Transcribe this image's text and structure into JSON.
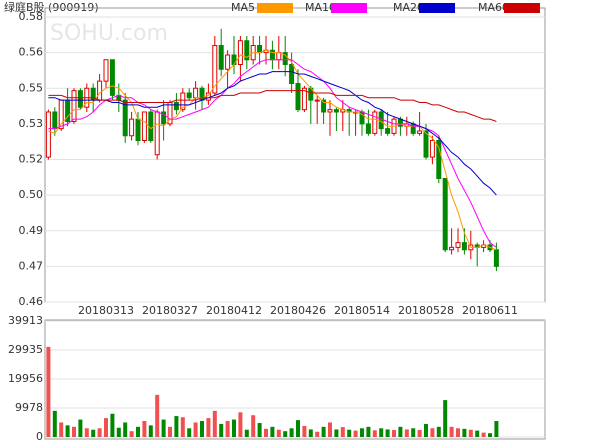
{
  "chart_data": {
    "type": "candlestick",
    "title": "绿庭B股 (900919)",
    "watermark": "SOHU.com",
    "categories": [
      null,
      null,
      null,
      null,
      null,
      null,
      null,
      null,
      null,
      "20180313",
      null,
      null,
      null,
      null,
      null,
      null,
      null,
      null,
      null,
      "20180327",
      null,
      null,
      null,
      null,
      null,
      null,
      null,
      null,
      null,
      "20180412",
      null,
      null,
      null,
      null,
      null,
      null,
      null,
      null,
      null,
      "20180426",
      null,
      null,
      null,
      null,
      null,
      null,
      null,
      null,
      null,
      "20180514",
      null,
      null,
      null,
      null,
      null,
      null,
      null,
      null,
      null,
      "20180528",
      null,
      null,
      null,
      null,
      null,
      null,
      null,
      null,
      null,
      "20180611",
      null
    ],
    "ohlc": [
      [
        0.521,
        0.541,
        0.52,
        0.54
      ],
      [
        0.54,
        0.542,
        0.53,
        0.533
      ],
      [
        0.533,
        0.545,
        0.532,
        0.545
      ],
      [
        0.545,
        0.55,
        0.534,
        0.536
      ],
      [
        0.536,
        0.55,
        0.535,
        0.549
      ],
      [
        0.549,
        0.55,
        0.541,
        0.542
      ],
      [
        0.542,
        0.552,
        0.54,
        0.55
      ],
      [
        0.55,
        0.552,
        0.54,
        0.545
      ],
      [
        0.545,
        0.556,
        0.544,
        0.553
      ],
      [
        0.553,
        0.562,
        0.55,
        0.562
      ],
      [
        0.562,
        0.562,
        0.545,
        0.547
      ],
      [
        0.547,
        0.552,
        0.54,
        0.545
      ],
      [
        0.545,
        0.548,
        0.527,
        0.53
      ],
      [
        0.53,
        0.54,
        0.528,
        0.537
      ],
      [
        0.537,
        0.54,
        0.526,
        0.528
      ],
      [
        0.528,
        0.54,
        0.527,
        0.54
      ],
      [
        0.54,
        0.541,
        0.527,
        0.528
      ],
      [
        0.522,
        0.541,
        0.52,
        0.54
      ],
      [
        0.54,
        0.545,
        0.528,
        0.535
      ],
      [
        0.535,
        0.545,
        0.534,
        0.544
      ],
      [
        0.544,
        0.548,
        0.539,
        0.541
      ],
      [
        0.541,
        0.55,
        0.54,
        0.548
      ],
      [
        0.548,
        0.55,
        0.545,
        0.546
      ],
      [
        0.546,
        0.553,
        0.541,
        0.55
      ],
      [
        0.55,
        0.551,
        0.541,
        0.545
      ],
      [
        0.545,
        0.552,
        0.543,
        0.548
      ],
      [
        0.548,
        0.572,
        0.547,
        0.568
      ],
      [
        0.568,
        0.575,
        0.555,
        0.558
      ],
      [
        0.558,
        0.566,
        0.55,
        0.564
      ],
      [
        0.564,
        0.572,
        0.556,
        0.56
      ],
      [
        0.56,
        0.572,
        0.553,
        0.57
      ],
      [
        0.57,
        0.572,
        0.558,
        0.562
      ],
      [
        0.562,
        0.572,
        0.56,
        0.568
      ],
      [
        0.568,
        0.572,
        0.56,
        0.565
      ],
      [
        0.565,
        0.572,
        0.56,
        0.566
      ],
      [
        0.566,
        0.57,
        0.558,
        0.562
      ],
      [
        0.562,
        0.572,
        0.558,
        0.565
      ],
      [
        0.565,
        0.572,
        0.555,
        0.56
      ],
      [
        0.56,
        0.565,
        0.548,
        0.552
      ],
      [
        0.552,
        0.558,
        0.54,
        0.541
      ],
      [
        0.541,
        0.551,
        0.54,
        0.55
      ],
      [
        0.55,
        0.551,
        0.535,
        0.545
      ],
      [
        0.545,
        0.547,
        0.535,
        0.545
      ],
      [
        0.545,
        0.546,
        0.535,
        0.54
      ],
      [
        0.54,
        0.545,
        0.53,
        0.541
      ],
      [
        0.541,
        0.542,
        0.532,
        0.54
      ],
      [
        0.54,
        0.545,
        0.532,
        0.541
      ],
      [
        0.541,
        0.542,
        0.53,
        0.54
      ],
      [
        0.54,
        0.541,
        0.53,
        0.54
      ],
      [
        0.54,
        0.541,
        0.53,
        0.535
      ],
      [
        0.535,
        0.541,
        0.53,
        0.531
      ],
      [
        0.531,
        0.541,
        0.53,
        0.54
      ],
      [
        0.54,
        0.541,
        0.53,
        0.533
      ],
      [
        0.533,
        0.54,
        0.53,
        0.531
      ],
      [
        0.531,
        0.538,
        0.53,
        0.537
      ],
      [
        0.537,
        0.538,
        0.53,
        0.534
      ],
      [
        0.534,
        0.538,
        0.53,
        0.535
      ],
      [
        0.535,
        0.536,
        0.53,
        0.531
      ],
      [
        0.531,
        0.54,
        0.53,
        0.532
      ],
      [
        0.532,
        0.535,
        0.52,
        0.521
      ],
      [
        0.521,
        0.53,
        0.518,
        0.528
      ],
      [
        0.528,
        0.53,
        0.51,
        0.512
      ],
      [
        0.512,
        0.512,
        0.481,
        0.482
      ],
      [
        0.482,
        0.491,
        0.48,
        0.483
      ],
      [
        0.483,
        0.491,
        0.481,
        0.485
      ],
      [
        0.485,
        0.491,
        0.48,
        0.482
      ],
      [
        0.482,
        0.49,
        0.478,
        0.484
      ],
      [
        0.484,
        0.485,
        0.475,
        0.483
      ],
      [
        0.483,
        0.486,
        0.481,
        0.484
      ],
      [
        0.484,
        0.486,
        0.481,
        0.482
      ],
      [
        0.482,
        0.485,
        0.473,
        0.475
      ]
    ],
    "up_color": "#e00000",
    "down_color": "#008800",
    "ylim": [
      0.46,
      0.58
    ],
    "yticks": [
      0.46,
      {
        "value": 0.475,
        "label": "0.47"
      },
      0.49,
      {
        "value": 0.505,
        "label": "0.50"
      },
      0.52,
      {
        "value": 0.535,
        "label": "0.53"
      },
      0.55,
      {
        "value": 0.565,
        "label": "0.56"
      },
      0.58
    ],
    "grid": true,
    "series": [
      {
        "name": "MA5",
        "color": "#ff9900",
        "values": [
          0.532,
          0.531,
          0.535,
          0.538,
          0.541,
          0.541,
          0.544,
          0.544,
          0.548,
          0.55,
          0.551,
          0.55,
          0.547,
          0.544,
          0.537,
          0.536,
          0.533,
          0.535,
          0.534,
          0.537,
          0.538,
          0.542,
          0.543,
          0.546,
          0.546,
          0.547,
          0.551,
          0.554,
          0.557,
          0.56,
          0.564,
          0.563,
          0.565,
          0.565,
          0.566,
          0.565,
          0.565,
          0.564,
          0.561,
          0.556,
          0.553,
          0.55,
          0.547,
          0.544,
          0.544,
          0.542,
          0.541,
          0.54,
          0.54,
          0.539,
          0.537,
          0.537,
          0.536,
          0.534,
          0.534,
          0.535,
          0.534,
          0.534,
          0.534,
          0.531,
          0.529,
          0.525,
          0.515,
          0.505,
          0.498,
          0.489,
          0.483,
          0.483,
          0.484,
          0.483,
          0.482
        ]
      },
      {
        "name": "MA10",
        "color": "#ff00ff",
        "values": [
          0.533,
          0.533,
          0.534,
          0.535,
          0.537,
          0.537,
          0.538,
          0.54,
          0.543,
          0.545,
          0.546,
          0.547,
          0.546,
          0.546,
          0.544,
          0.543,
          0.541,
          0.54,
          0.539,
          0.537,
          0.537,
          0.538,
          0.539,
          0.54,
          0.541,
          0.542,
          0.545,
          0.547,
          0.55,
          0.552,
          0.555,
          0.557,
          0.559,
          0.561,
          0.562,
          0.562,
          0.562,
          0.562,
          0.562,
          0.56,
          0.558,
          0.557,
          0.555,
          0.553,
          0.55,
          0.546,
          0.544,
          0.542,
          0.541,
          0.54,
          0.539,
          0.538,
          0.537,
          0.536,
          0.535,
          0.535,
          0.535,
          0.534,
          0.534,
          0.533,
          0.532,
          0.53,
          0.524,
          0.518,
          0.512,
          0.507,
          0.502,
          0.496,
          0.49,
          0.485,
          0.483
        ]
      },
      {
        "name": "MA20",
        "color": "#0000cc",
        "values": [
          0.546,
          0.546,
          0.545,
          0.545,
          0.545,
          0.545,
          0.545,
          0.545,
          0.545,
          0.545,
          0.544,
          0.544,
          0.543,
          0.543,
          0.543,
          0.542,
          0.542,
          0.542,
          0.543,
          0.543,
          0.543,
          0.543,
          0.543,
          0.544,
          0.545,
          0.546,
          0.547,
          0.548,
          0.55,
          0.551,
          0.553,
          0.554,
          0.555,
          0.556,
          0.556,
          0.557,
          0.557,
          0.557,
          0.557,
          0.556,
          0.556,
          0.555,
          0.554,
          0.553,
          0.552,
          0.551,
          0.55,
          0.549,
          0.547,
          0.545,
          0.544,
          0.542,
          0.541,
          0.539,
          0.538,
          0.537,
          0.536,
          0.535,
          0.534,
          0.533,
          0.531,
          0.529,
          0.526,
          0.523,
          0.521,
          0.518,
          0.516,
          0.513,
          0.51,
          0.508,
          0.505
        ]
      },
      {
        "name": "MA60",
        "color": "#cc0000",
        "values": [
          0.547,
          0.547,
          0.547,
          0.546,
          0.546,
          0.546,
          0.546,
          0.546,
          0.545,
          0.545,
          0.545,
          0.545,
          0.544,
          0.544,
          0.544,
          0.544,
          0.544,
          0.544,
          0.544,
          0.544,
          0.545,
          0.545,
          0.545,
          0.545,
          0.546,
          0.546,
          0.546,
          0.547,
          0.547,
          0.547,
          0.548,
          0.548,
          0.548,
          0.548,
          0.549,
          0.549,
          0.549,
          0.549,
          0.549,
          0.549,
          0.549,
          0.548,
          0.548,
          0.548,
          0.548,
          0.547,
          0.547,
          0.547,
          0.547,
          0.547,
          0.546,
          0.546,
          0.546,
          0.546,
          0.546,
          0.545,
          0.545,
          0.545,
          0.544,
          0.544,
          0.543,
          0.543,
          0.542,
          0.541,
          0.54,
          0.54,
          0.539,
          0.538,
          0.537,
          0.537,
          0.536
        ]
      }
    ],
    "volume": {
      "values": [
        31000,
        9000,
        5000,
        4000,
        3500,
        6000,
        3000,
        2500,
        3000,
        6500,
        8000,
        3200,
        5000,
        2000,
        3500,
        5500,
        4000,
        14500,
        6000,
        3500,
        7200,
        6800,
        3000,
        5000,
        5500,
        6500,
        9000,
        4500,
        5500,
        6000,
        8500,
        2500,
        7500,
        4800,
        2800,
        3500,
        2500,
        2000,
        3000,
        5800,
        3800,
        2600,
        1800,
        3500,
        5000,
        2600,
        3400,
        2500,
        2200,
        3000,
        3500,
        2300,
        3000,
        2600,
        2400,
        3500,
        2600,
        3000,
        2400,
        4500,
        3000,
        3500,
        12700,
        3500,
        3000,
        2800,
        2500,
        2200,
        1500,
        1300,
        5500
      ],
      "up_color": "#f05050",
      "down_color": "#008800",
      "ylim": [
        0,
        39913
      ],
      "yticks": [
        0,
        9978,
        19956,
        29935,
        39913
      ]
    }
  }
}
